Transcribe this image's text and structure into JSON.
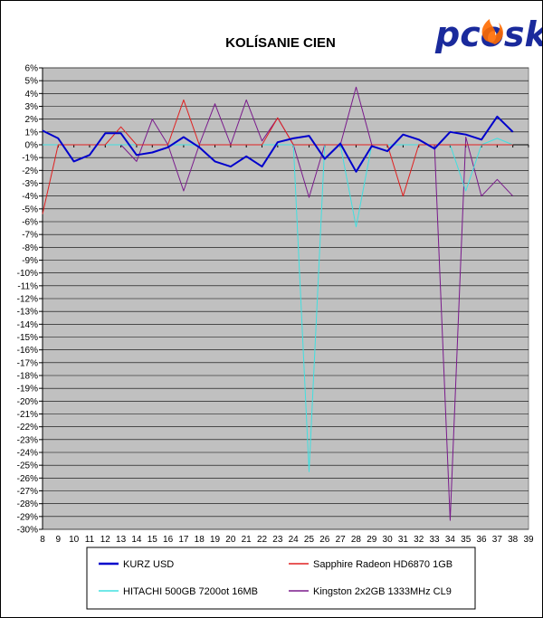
{
  "logo": {
    "text": "pcosk",
    "color": "#1a2a9c",
    "flame_color": "#ff6a00"
  },
  "chart_data": {
    "type": "line",
    "title": "KOLÍSANIE CIEN",
    "xlabel": "",
    "ylabel": "",
    "x": [
      8,
      9,
      10,
      11,
      12,
      13,
      14,
      15,
      16,
      17,
      18,
      19,
      20,
      21,
      22,
      23,
      24,
      25,
      26,
      27,
      28,
      29,
      30,
      31,
      32,
      33,
      34,
      35,
      36,
      37,
      38
    ],
    "x_ticks": [
      8,
      9,
      10,
      11,
      12,
      13,
      14,
      15,
      16,
      17,
      18,
      19,
      20,
      21,
      22,
      23,
      24,
      25,
      26,
      27,
      28,
      29,
      30,
      31,
      32,
      33,
      34,
      35,
      36,
      37,
      38,
      39
    ],
    "xlim": [
      8,
      39
    ],
    "ylim": [
      -30,
      6
    ],
    "y_step": 1,
    "y_tick_suffix": "%",
    "grid": true,
    "plot_background": "#c0c0c0",
    "legend": "bottom",
    "series": [
      {
        "name": "KURZ USD",
        "color": "#0000cc",
        "width": 2,
        "values": [
          1.1,
          0.5,
          -1.3,
          -0.8,
          0.9,
          0.9,
          -0.8,
          -0.6,
          -0.2,
          0.6,
          -0.2,
          -1.3,
          -1.7,
          -0.9,
          -1.7,
          0.2,
          0.5,
          0.7,
          -1.1,
          0.1,
          -2.1,
          -0.1,
          -0.5,
          0.8,
          0.4,
          -0.3,
          1.0,
          0.8,
          0.4,
          2.2,
          1.0
        ]
      },
      {
        "name": "Sapphire Radeon HD6870 1GB",
        "color": "#e02020",
        "width": 1,
        "values": [
          -5.4,
          0,
          0,
          0,
          0,
          1.4,
          0,
          0,
          0,
          3.5,
          0,
          0,
          0,
          0,
          0,
          2.1,
          0,
          0,
          0,
          0,
          0,
          0,
          0,
          -4.0,
          0,
          0,
          0,
          0,
          0,
          0,
          0
        ]
      },
      {
        "name": "HITACHI 500GB 7200ot 16MB",
        "color": "#40e0e0",
        "width": 1,
        "values": [
          0,
          0,
          0,
          0,
          0,
          0,
          0,
          0,
          0,
          0,
          0,
          0,
          0,
          0,
          0,
          0,
          0,
          -25.5,
          0,
          0,
          -6.4,
          0,
          0,
          0,
          0,
          0,
          0,
          -3.6,
          0,
          0.5,
          0
        ]
      },
      {
        "name": "Kingston 2x2GB 1333MHz CL9",
        "color": "#7a1a8c",
        "width": 1,
        "values": [
          0,
          0,
          0,
          0,
          0,
          0,
          -1.3,
          2.0,
          0,
          -3.6,
          0,
          3.2,
          0,
          3.5,
          0.3,
          2.1,
          0,
          -4.1,
          0,
          0,
          4.5,
          0,
          0,
          0,
          0,
          0,
          -29.3,
          0.6,
          -4.0,
          -2.7,
          -4.0
        ]
      }
    ]
  }
}
